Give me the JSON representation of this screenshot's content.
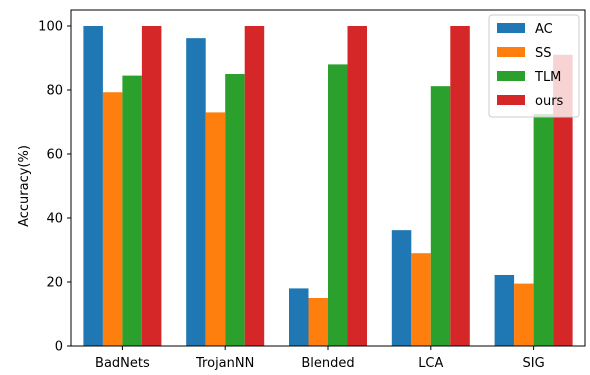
{
  "chart_data": {
    "type": "bar",
    "title": "",
    "xlabel": "",
    "ylabel": "Accuracy(%)",
    "ylim": [
      0,
      105
    ],
    "yticks": [
      0,
      20,
      40,
      60,
      80,
      100
    ],
    "grid": false,
    "legend_position": "top-right",
    "categories": [
      "BadNets",
      "TrojanNN",
      "Blended",
      "LCA",
      "SIG"
    ],
    "series": [
      {
        "name": "AC",
        "color": "#1f77b4",
        "values": [
          100,
          96.2,
          18,
          36.2,
          22.2
        ]
      },
      {
        "name": "SS",
        "color": "#ff7f0e",
        "values": [
          79.3,
          73,
          15,
          29,
          19.5
        ]
      },
      {
        "name": "TLM",
        "color": "#2ca02c",
        "values": [
          84.5,
          85,
          88,
          81.2,
          72.5
        ]
      },
      {
        "name": "ours",
        "color": "#d62728",
        "values": [
          100,
          100,
          100,
          100,
          91
        ]
      }
    ]
  }
}
